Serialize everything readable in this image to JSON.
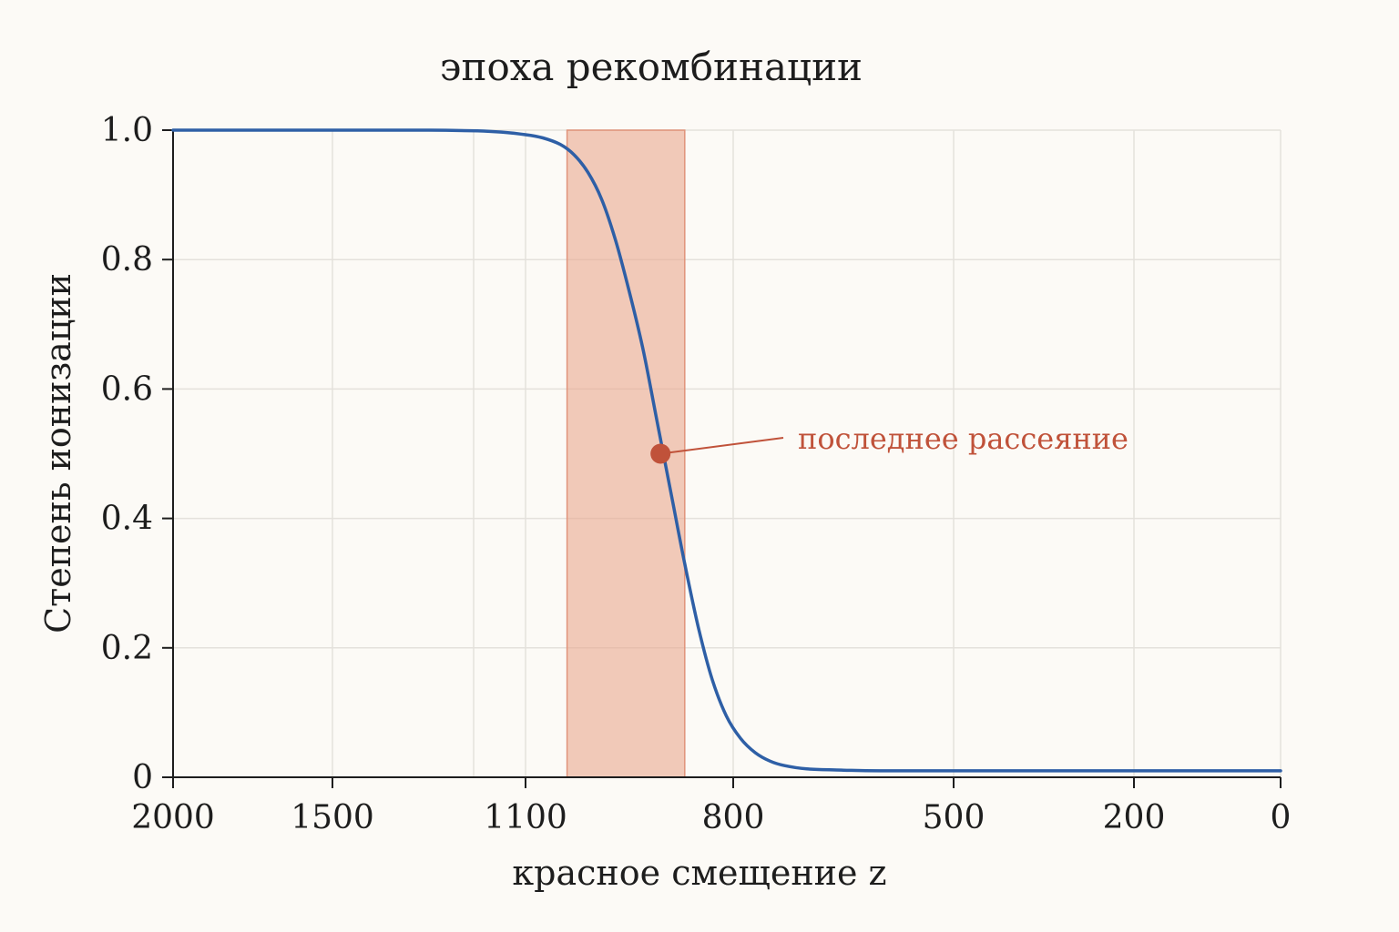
{
  "chart_data": {
    "type": "line",
    "title": "эпоха рекомбинации",
    "xlabel": "красное смещение z",
    "ylabel": "Степень ионизации",
    "x_ticks": [
      2000,
      1500,
      1100,
      800,
      500,
      200,
      0
    ],
    "y_ticks": [
      0,
      0.2,
      0.4,
      0.6,
      0.8,
      1.0
    ],
    "y_tick_labels": [
      "0",
      "0.2",
      "0.4",
      "0.6",
      "0.8",
      "1.0"
    ],
    "ylim": [
      0,
      1.0
    ],
    "x_reversed": true,
    "grid": true,
    "shaded_region": {
      "x_start": 1040,
      "x_end": 870,
      "color": "#e9a98f"
    },
    "series": [
      {
        "color": "#2e5fa6",
        "x": [
          2000,
          1800,
          1600,
          1400,
          1300,
          1200,
          1150,
          1100,
          1075,
          1050,
          1030,
          1010,
          990,
          970,
          950,
          930,
          910,
          890,
          870,
          850,
          830,
          810,
          790,
          770,
          750,
          730,
          700,
          650,
          600,
          500,
          400,
          300,
          200,
          100,
          0
        ],
        "y": [
          1.0,
          1.0,
          1.0,
          1.0,
          1.0,
          0.999,
          0.997,
          0.993,
          0.988,
          0.978,
          0.962,
          0.935,
          0.893,
          0.83,
          0.75,
          0.66,
          0.55,
          0.44,
          0.33,
          0.23,
          0.15,
          0.095,
          0.06,
          0.038,
          0.025,
          0.018,
          0.013,
          0.011,
          0.01,
          0.01,
          0.01,
          0.01,
          0.01,
          0.01,
          0.01
        ]
      }
    ],
    "annotation": {
      "text": "последнее рассеяние",
      "x": 905,
      "y": 0.5,
      "color": "#c0523a"
    }
  }
}
